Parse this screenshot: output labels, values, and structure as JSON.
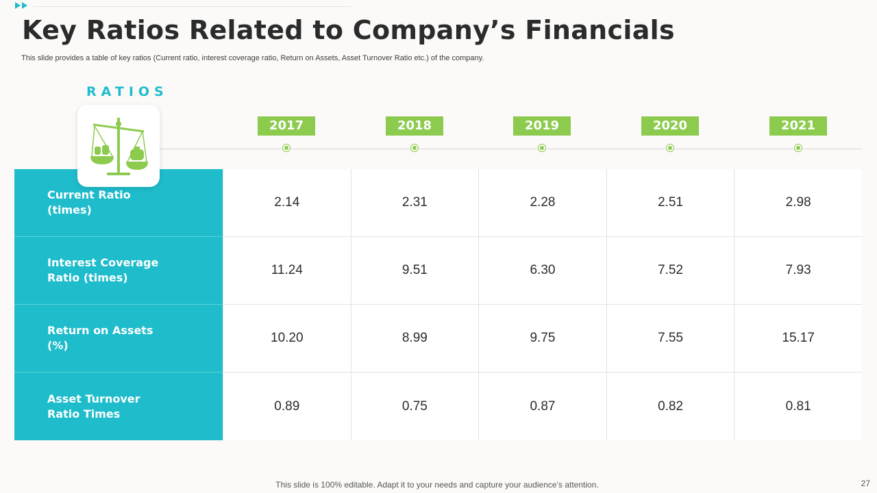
{
  "slide": {
    "title": "Key Ratios Related to Company’s Financials",
    "subtitle": "This slide provides a table of key ratios (Current ratio, interest coverage ratio, Return on Assets, Asset Turnover Ratio etc.) of the company.",
    "ratios_label": "RATIOS",
    "icon": "balance-scale-money-bags-icon",
    "colors": {
      "accent_teal": "#1fbccc",
      "accent_green": "#8dcb4f"
    },
    "footer": "This slide is 100% editable. Adapt it to your needs and capture your audience’s attention.",
    "page_number": "27"
  },
  "table": {
    "years": [
      "2017",
      "2018",
      "2019",
      "2020",
      "2021"
    ],
    "rows": [
      {
        "label": "Current Ratio (times)",
        "values": [
          "2.14",
          "2.31",
          "2.28",
          "2.51",
          "2.98"
        ]
      },
      {
        "label": "Interest Coverage Ratio (times)",
        "values": [
          "11.24",
          "9.51",
          "6.30",
          "7.52",
          "7.93"
        ]
      },
      {
        "label": "Return on Assets (%)",
        "values": [
          "10.20",
          "8.99",
          "9.75",
          "7.55",
          "15.17"
        ]
      },
      {
        "label": "Asset Turnover Ratio Times",
        "values": [
          "0.89",
          "0.75",
          "0.87",
          "0.82",
          "0.81"
        ]
      }
    ]
  }
}
